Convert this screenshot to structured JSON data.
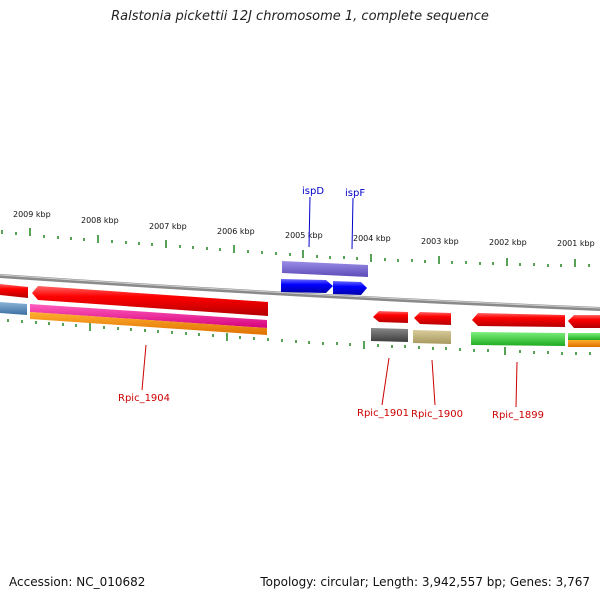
{
  "title": "Ralstonia pickettii 12J chromosome 1, complete sequence",
  "footer": {
    "accession": "Accession: NC_010682",
    "summary": "Topology: circular; Length: 3,942,557 bp; Genes: 3,767"
  },
  "kbp_labels": [
    "2009 kbp",
    "2008 kbp",
    "2007 kbp",
    "2006 kbp",
    "2005 kbp",
    "2004 kbp",
    "2003 kbp",
    "2002 kbp",
    "2001 kbp"
  ],
  "gene_labels": {
    "ispD": "ispD",
    "ispF": "ispF",
    "rpic_1904": "Rpic_1904",
    "rpic_1901": "Rpic_1901",
    "rpic_1900": "Rpic_1900",
    "rpic_1899": "Rpic_1899"
  },
  "colors": {
    "forward_gene": "#ee0000",
    "blue_gene": "#0000ff",
    "purple_band": "#7a6ad0",
    "tick_green": "#2e8b2e",
    "backbone": "#888888",
    "label_red": "#cc0000",
    "label_blue": "#0000cc"
  }
}
